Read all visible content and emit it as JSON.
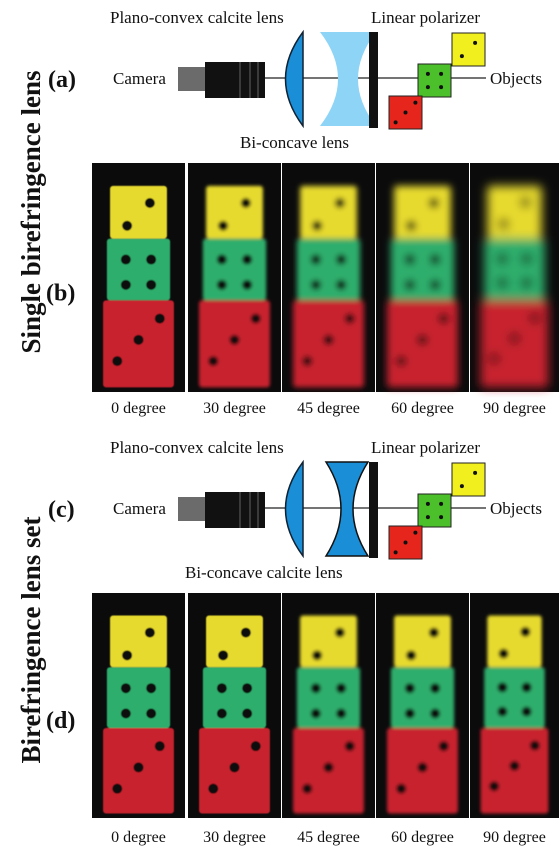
{
  "sections": [
    {
      "side_label": "Single birefringence lens",
      "diagram": {
        "panel": "(a)",
        "lens1": "Plano-convex calcite lens",
        "polarizer": "Linear polarizer",
        "camera": "Camera",
        "objects": "Objects",
        "lens2": "Bi-concave lens"
      },
      "photos": {
        "panel": "(b)",
        "captions": [
          "0 degree",
          "30 degree",
          "45 degree",
          "60 degree",
          "90 degree"
        ]
      }
    },
    {
      "side_label": "Birefringence lens set",
      "diagram": {
        "panel": "(c)",
        "lens1": "Plano-convex calcite lens",
        "polarizer": "Linear polarizer",
        "camera": "Camera",
        "objects": "Objects",
        "lens2": "Bi-concave calcite lens"
      },
      "photos": {
        "panel": "(d)",
        "captions": [
          "0 degree",
          "30 degree",
          "45 degree",
          "60 degree",
          "90 degree"
        ]
      }
    }
  ]
}
